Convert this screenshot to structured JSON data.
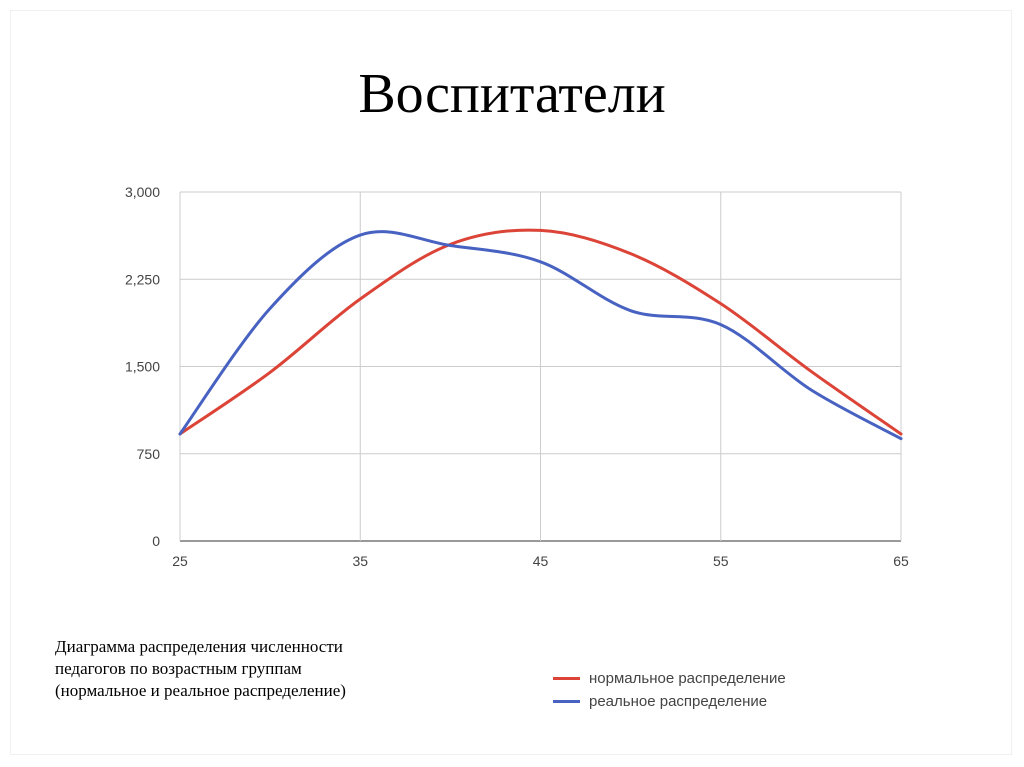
{
  "slide": {
    "title": "Воспитатели",
    "caption_lines": [
      "Диаграмма распределения численности",
      "педагогов по возрастным группам",
      "(нормальное и реальное распределение)"
    ]
  },
  "chart_data": {
    "type": "line",
    "title": "",
    "xlabel": "",
    "ylabel": "",
    "xlim": [
      25,
      65
    ],
    "ylim": [
      0,
      3000
    ],
    "x_ticks": [
      25,
      35,
      45,
      55,
      65
    ],
    "x_tick_labels": [
      "25",
      "35",
      "45",
      "55",
      "65"
    ],
    "y_ticks": [
      0,
      750,
      1500,
      2250,
      3000
    ],
    "y_tick_labels": [
      "0",
      "750",
      "1,500",
      "2,250",
      "3,000"
    ],
    "grid": true,
    "legend_position": "bottom-right",
    "series": [
      {
        "name": "нормальное распределение",
        "color": "#db4437",
        "x": [
          25,
          30,
          35,
          40,
          45,
          50,
          55,
          60,
          65
        ],
        "y": [
          920,
          1450,
          2080,
          2550,
          2670,
          2470,
          2040,
          1460,
          920
        ]
      },
      {
        "name": "реальное распределение",
        "color": "#4862c2",
        "x": [
          25,
          30,
          35,
          40,
          45,
          50,
          55,
          60,
          65
        ],
        "y": [
          920,
          2000,
          2630,
          2540,
          2400,
          1980,
          1860,
          1300,
          880
        ]
      }
    ]
  }
}
